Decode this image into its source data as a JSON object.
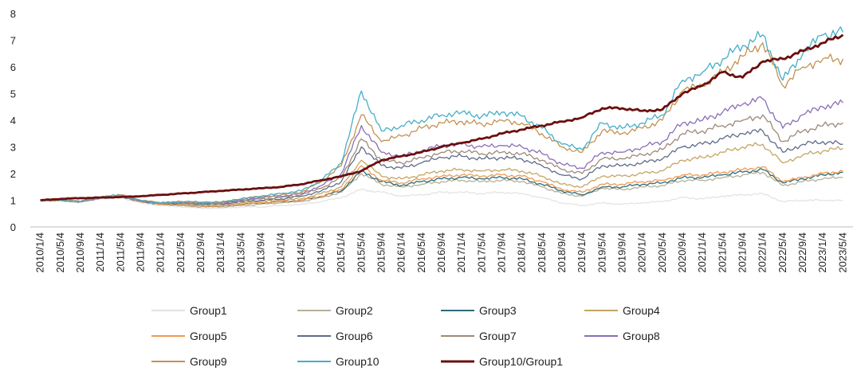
{
  "chart_data": {
    "type": "line",
    "title": "",
    "xlabel": "",
    "ylabel": "",
    "ylim": [
      0,
      8
    ],
    "yticks": [
      "0",
      "1",
      "2",
      "3",
      "4",
      "5",
      "6",
      "7",
      "8"
    ],
    "grid": false,
    "legend_position": "bottom",
    "categories": [
      "2010/1/4",
      "2010/5/4",
      "2010/9/4",
      "2011/1/4",
      "2011/5/4",
      "2011/9/4",
      "2012/1/4",
      "2012/5/4",
      "2012/9/4",
      "2013/1/4",
      "2013/5/4",
      "2013/9/4",
      "2014/1/4",
      "2014/5/4",
      "2014/9/4",
      "2015/1/4",
      "2015/5/4",
      "2015/9/4",
      "2016/1/4",
      "2016/5/4",
      "2016/9/4",
      "2017/1/4",
      "2017/5/4",
      "2017/9/4",
      "2018/1/4",
      "2018/5/4",
      "2018/9/4",
      "2019/1/4",
      "2019/5/4",
      "2019/9/4",
      "2020/1/4",
      "2020/5/4",
      "2020/9/4",
      "2021/1/4",
      "2021/5/4",
      "2021/9/4",
      "2022/1/4",
      "2022/5/4",
      "2022/9/4",
      "2023/1/4",
      "2023/5/4"
    ],
    "series": [
      {
        "name": "Group1",
        "color": "#e3e3e3",
        "width": 1.3,
        "values": [
          1.0,
          1.0,
          0.9,
          1.05,
          1.1,
          0.9,
          0.8,
          0.75,
          0.7,
          0.7,
          0.75,
          0.75,
          0.8,
          0.85,
          0.95,
          1.1,
          1.4,
          1.3,
          1.15,
          1.2,
          1.3,
          1.3,
          1.25,
          1.3,
          1.25,
          1.1,
          0.9,
          0.8,
          0.9,
          0.85,
          0.9,
          0.95,
          1.1,
          1.05,
          1.15,
          1.2,
          1.25,
          0.95,
          1.0,
          1.0,
          1.0
        ]
      },
      {
        "name": "Group2",
        "color": "#b5b09a",
        "width": 1.3,
        "values": [
          1.0,
          1.0,
          0.95,
          1.1,
          1.15,
          0.95,
          0.85,
          0.8,
          0.75,
          0.75,
          0.8,
          0.85,
          0.9,
          0.95,
          1.1,
          1.3,
          2.0,
          1.6,
          1.5,
          1.6,
          1.7,
          1.75,
          1.7,
          1.75,
          1.7,
          1.5,
          1.25,
          1.15,
          1.45,
          1.4,
          1.5,
          1.55,
          1.75,
          1.75,
          1.85,
          1.95,
          2.05,
          1.55,
          1.7,
          1.8,
          1.85
        ]
      },
      {
        "name": "Group3",
        "color": "#2e6b78",
        "width": 1.3,
        "values": [
          1.0,
          1.0,
          0.95,
          1.1,
          1.15,
          0.95,
          0.85,
          0.82,
          0.78,
          0.78,
          0.85,
          0.9,
          0.95,
          1.0,
          1.15,
          1.35,
          2.1,
          1.7,
          1.55,
          1.7,
          1.8,
          1.85,
          1.8,
          1.85,
          1.8,
          1.6,
          1.35,
          1.2,
          1.5,
          1.5,
          1.6,
          1.65,
          1.85,
          1.85,
          1.95,
          2.05,
          2.15,
          1.65,
          1.8,
          1.95,
          2.05
        ]
      },
      {
        "name": "Group4",
        "color": "#c5a563",
        "width": 1.3,
        "values": [
          1.0,
          1.0,
          0.95,
          1.1,
          1.15,
          0.95,
          0.85,
          0.85,
          0.8,
          0.8,
          0.9,
          0.95,
          1.0,
          1.05,
          1.25,
          1.5,
          2.5,
          1.9,
          1.8,
          1.95,
          2.1,
          2.15,
          2.1,
          2.15,
          2.1,
          1.9,
          1.6,
          1.5,
          1.9,
          1.9,
          2.0,
          2.1,
          2.5,
          2.6,
          2.8,
          3.0,
          3.1,
          2.4,
          2.7,
          2.85,
          2.95
        ]
      },
      {
        "name": "Group5",
        "color": "#ef9a52",
        "width": 1.3,
        "values": [
          1.0,
          1.0,
          0.95,
          1.1,
          1.15,
          0.95,
          0.85,
          0.82,
          0.78,
          0.78,
          0.85,
          0.9,
          0.95,
          1.0,
          1.15,
          1.4,
          2.3,
          1.75,
          1.65,
          1.8,
          1.9,
          1.95,
          1.9,
          1.95,
          1.9,
          1.7,
          1.4,
          1.3,
          1.6,
          1.6,
          1.7,
          1.75,
          1.95,
          1.95,
          2.05,
          2.15,
          2.25,
          1.7,
          1.85,
          2.0,
          2.1
        ]
      },
      {
        "name": "Group6",
        "color": "#5e6b8a",
        "width": 1.3,
        "values": [
          1.0,
          1.0,
          0.95,
          1.1,
          1.15,
          0.97,
          0.88,
          0.88,
          0.85,
          0.85,
          0.95,
          1.0,
          1.05,
          1.15,
          1.35,
          1.7,
          3.0,
          2.3,
          2.2,
          2.4,
          2.6,
          2.65,
          2.55,
          2.6,
          2.55,
          2.3,
          1.95,
          1.8,
          2.3,
          2.3,
          2.4,
          2.55,
          3.0,
          3.1,
          3.3,
          3.5,
          3.6,
          2.8,
          3.1,
          3.2,
          3.1
        ]
      },
      {
        "name": "Group7",
        "color": "#9c8a78",
        "width": 1.3,
        "values": [
          1.0,
          1.0,
          0.95,
          1.1,
          1.15,
          0.97,
          0.88,
          0.9,
          0.88,
          0.88,
          0.98,
          1.05,
          1.1,
          1.2,
          1.45,
          1.85,
          3.3,
          2.5,
          2.4,
          2.6,
          2.8,
          2.85,
          2.75,
          2.8,
          2.75,
          2.5,
          2.15,
          2.0,
          2.55,
          2.55,
          2.7,
          2.9,
          3.5,
          3.6,
          3.8,
          4.0,
          4.2,
          3.2,
          3.6,
          3.8,
          3.9
        ]
      },
      {
        "name": "Group8",
        "color": "#8a6eb5",
        "width": 1.3,
        "values": [
          1.0,
          1.0,
          0.95,
          1.1,
          1.15,
          0.98,
          0.9,
          0.92,
          0.9,
          0.9,
          1.0,
          1.1,
          1.15,
          1.25,
          1.55,
          2.0,
          3.8,
          2.8,
          2.65,
          2.85,
          3.05,
          3.1,
          3.0,
          3.05,
          3.0,
          2.75,
          2.35,
          2.2,
          2.8,
          2.8,
          3.0,
          3.2,
          3.9,
          4.0,
          4.3,
          4.6,
          4.8,
          3.7,
          4.2,
          4.5,
          4.65
        ]
      },
      {
        "name": "Group9",
        "color": "#c4914f",
        "width": 1.3,
        "values": [
          1.0,
          1.0,
          0.95,
          1.12,
          1.2,
          1.0,
          0.9,
          0.95,
          0.92,
          0.92,
          1.05,
          1.15,
          1.2,
          1.3,
          1.7,
          2.3,
          4.2,
          3.2,
          3.4,
          3.7,
          3.9,
          3.95,
          3.85,
          4.0,
          3.9,
          3.5,
          3.0,
          2.8,
          3.6,
          3.5,
          3.7,
          4.0,
          5.1,
          5.3,
          5.8,
          6.4,
          6.9,
          5.3,
          6.0,
          6.3,
          6.3
        ]
      },
      {
        "name": "Group10",
        "color": "#45aec8",
        "width": 1.3,
        "values": [
          1.0,
          1.0,
          0.95,
          1.12,
          1.2,
          1.0,
          0.9,
          0.95,
          0.93,
          0.93,
          1.05,
          1.15,
          1.25,
          1.35,
          1.75,
          2.4,
          5.1,
          3.6,
          3.8,
          4.0,
          4.2,
          4.3,
          4.15,
          4.3,
          4.15,
          3.7,
          3.1,
          2.9,
          3.9,
          3.7,
          3.9,
          4.2,
          5.5,
          5.8,
          6.3,
          6.8,
          7.2,
          5.5,
          6.5,
          7.2,
          7.3
        ]
      },
      {
        "name": "Group10/Group1",
        "color": "#6b0f0f",
        "width": 2.8,
        "values": [
          1.0,
          1.05,
          1.08,
          1.1,
          1.12,
          1.15,
          1.2,
          1.25,
          1.3,
          1.35,
          1.4,
          1.45,
          1.5,
          1.6,
          1.75,
          1.9,
          2.1,
          2.5,
          2.65,
          2.8,
          3.0,
          3.15,
          3.3,
          3.5,
          3.65,
          3.8,
          3.95,
          4.1,
          4.45,
          4.45,
          4.35,
          4.4,
          5.0,
          5.3,
          5.8,
          5.6,
          6.2,
          6.3,
          6.6,
          6.9,
          7.2
        ]
      }
    ]
  }
}
